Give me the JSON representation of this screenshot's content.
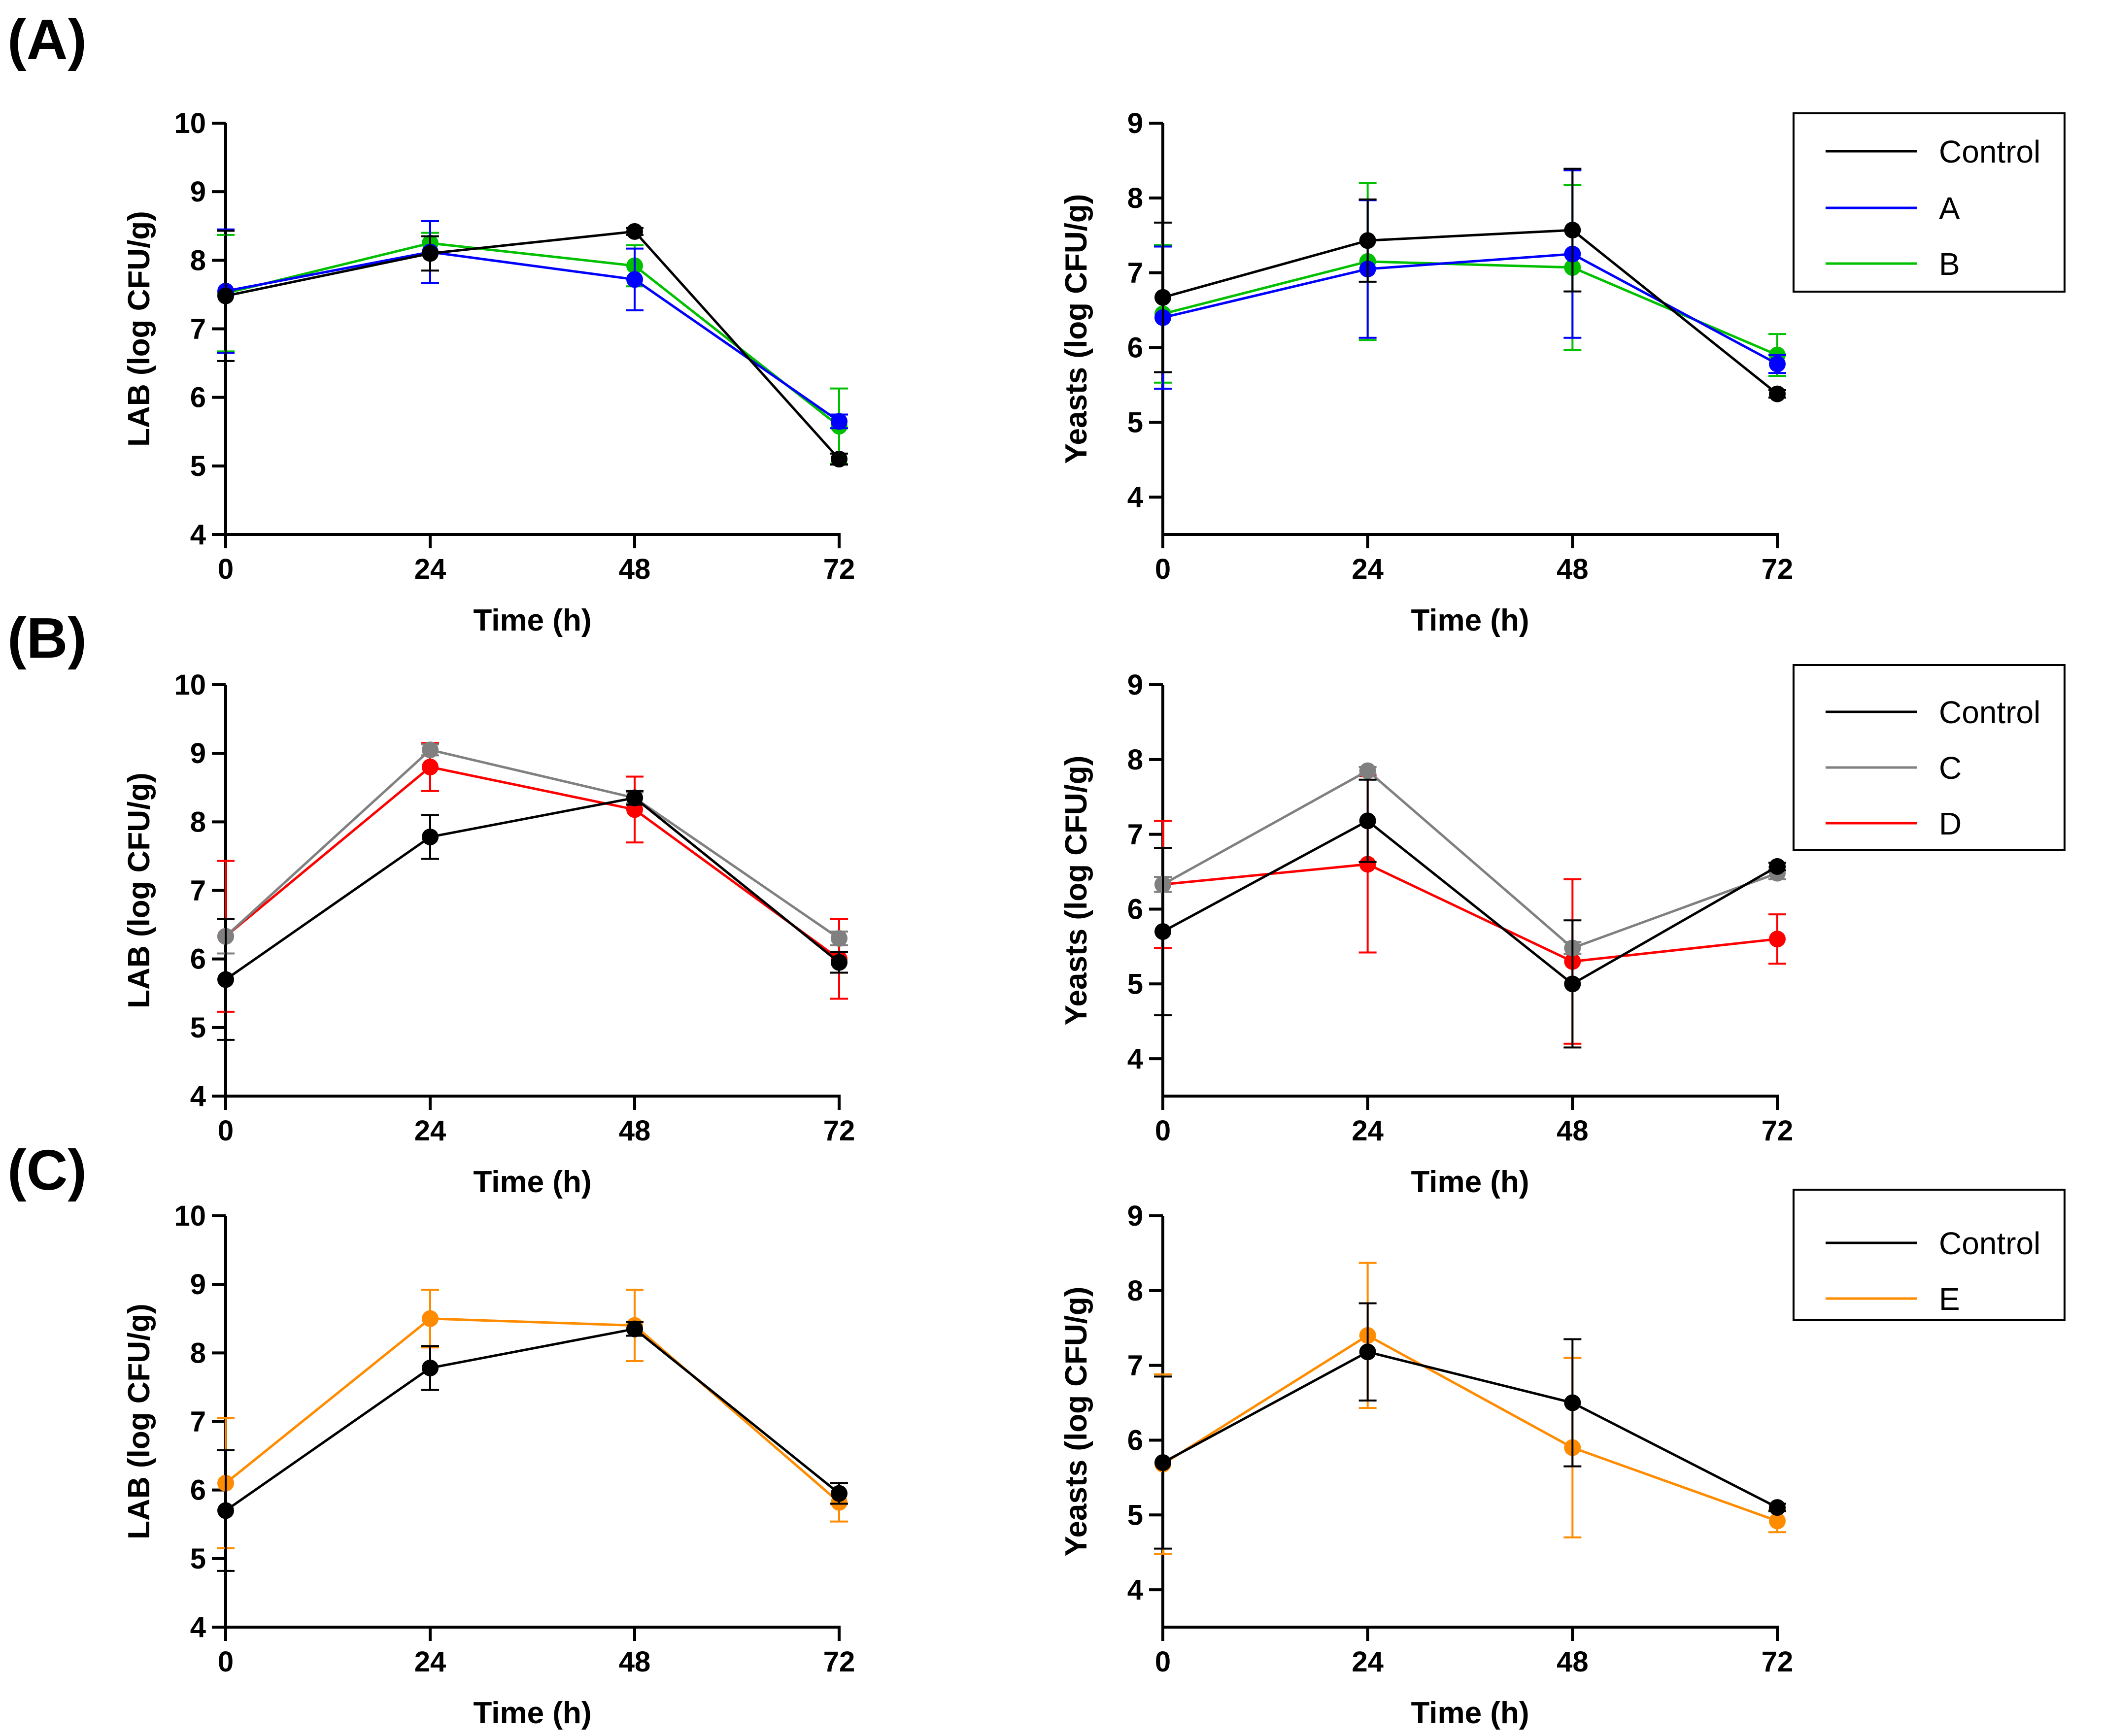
{
  "panels": [
    {
      "label": "(A)",
      "charts": [
        {
          "type": "line",
          "title": "",
          "xlabel": "Time (h)",
          "ylabel": "LAB (log CFU/g)",
          "x": [
            0,
            24,
            48,
            72
          ],
          "xticks": [
            "0",
            "24",
            "48",
            "72"
          ],
          "xlim": [
            0,
            72
          ],
          "ylim": [
            4,
            10
          ],
          "yticks": [
            "4",
            "5",
            "6",
            "7",
            "8",
            "9",
            "10"
          ],
          "series": [
            {
              "name": "Control",
              "color": "#000000",
              "values": [
                7.48,
                8.1,
                8.42,
                5.1
              ],
              "errors": [
                0.95,
                0.25,
                0.05,
                0.08
              ]
            },
            {
              "name": "A",
              "color": "#0000ff",
              "values": [
                7.55,
                8.12,
                7.72,
                5.65
              ],
              "errors": [
                0.9,
                0.45,
                0.45,
                0.1
              ]
            },
            {
              "name": "B",
              "color": "#00c000",
              "values": [
                7.52,
                8.25,
                7.92,
                5.58
              ],
              "errors": [
                0.85,
                0.15,
                0.3,
                0.55
              ]
            }
          ]
        },
        {
          "type": "line",
          "title": "",
          "xlabel": "Time (h)",
          "ylabel": "Yeasts (log CFU/g)",
          "x": [
            0,
            24,
            48,
            72
          ],
          "xticks": [
            "0",
            "24",
            "48",
            "72"
          ],
          "xlim": [
            0,
            72
          ],
          "ylim": [
            3.5,
            9
          ],
          "yticks": [
            "4",
            "5",
            "6",
            "7",
            "8",
            "9"
          ],
          "series": [
            {
              "name": "Control",
              "color": "#000000",
              "values": [
                6.67,
                7.43,
                7.57,
                5.38
              ],
              "errors": [
                1.0,
                0.55,
                0.82,
                0.05
              ]
            },
            {
              "name": "A",
              "color": "#0000ff",
              "values": [
                6.4,
                7.05,
                7.25,
                5.78
              ],
              "errors": [
                0.95,
                0.92,
                1.12,
                0.12
              ]
            },
            {
              "name": "B",
              "color": "#00c000",
              "values": [
                6.45,
                7.15,
                7.07,
                5.9
              ],
              "errors": [
                0.92,
                1.05,
                1.1,
                0.28
              ]
            }
          ]
        }
      ],
      "legend": [
        "Control",
        "A",
        "B"
      ]
    },
    {
      "label": "(B)",
      "charts": [
        {
          "type": "line",
          "title": "",
          "xlabel": "Time (h)",
          "ylabel": "LAB (log CFU/g)",
          "x": [
            0,
            24,
            48,
            72
          ],
          "xticks": [
            "0",
            "24",
            "48",
            "72"
          ],
          "xlim": [
            0,
            72
          ],
          "ylim": [
            4,
            10
          ],
          "yticks": [
            "4",
            "5",
            "6",
            "7",
            "8",
            "9",
            "10"
          ],
          "series": [
            {
              "name": "Control",
              "color": "#000000",
              "values": [
                5.7,
                7.78,
                8.35,
                5.95
              ],
              "errors": [
                0.88,
                0.32,
                0.1,
                0.15
              ]
            },
            {
              "name": "C",
              "color": "#808080",
              "values": [
                6.33,
                9.05,
                8.35,
                6.3
              ],
              "errors": [
                0.25,
                0.08,
                0.08,
                0.1
              ]
            },
            {
              "name": "D",
              "color": "#ff0000",
              "values": [
                6.33,
                8.8,
                8.18,
                6.0
              ],
              "errors": [
                1.1,
                0.35,
                0.48,
                0.58
              ]
            }
          ]
        },
        {
          "type": "line",
          "title": "",
          "xlabel": "Time (h)",
          "ylabel": "Yeasts (log CFU/g)",
          "x": [
            0,
            24,
            48,
            72
          ],
          "xticks": [
            "0",
            "24",
            "48",
            "72"
          ],
          "xlim": [
            0,
            72
          ],
          "ylim": [
            3.5,
            9
          ],
          "yticks": [
            "4",
            "5",
            "6",
            "7",
            "8",
            "9"
          ],
          "series": [
            {
              "name": "Control",
              "color": "#000000",
              "values": [
                5.7,
                7.18,
                5.0,
                6.57
              ],
              "errors": [
                1.12,
                0.55,
                0.85,
                0.05
              ]
            },
            {
              "name": "C",
              "color": "#808080",
              "values": [
                6.33,
                7.85,
                5.48,
                6.48
              ],
              "errors": [
                0.1,
                0.05,
                0.08,
                0.08
              ]
            },
            {
              "name": "D",
              "color": "#ff0000",
              "values": [
                6.33,
                6.6,
                5.3,
                5.6
              ],
              "errors": [
                0.85,
                1.18,
                1.1,
                0.33
              ]
            }
          ]
        }
      ],
      "legend": [
        "Control",
        "C",
        "D"
      ]
    },
    {
      "label": "(C)",
      "charts": [
        {
          "type": "line",
          "title": "",
          "xlabel": "Time (h)",
          "ylabel": "LAB (log CFU/g)",
          "x": [
            0,
            24,
            48,
            72
          ],
          "xticks": [
            "0",
            "24",
            "48",
            "72"
          ],
          "xlim": [
            0,
            72
          ],
          "ylim": [
            4,
            10
          ],
          "yticks": [
            "4",
            "5",
            "6",
            "7",
            "8",
            "9",
            "10"
          ],
          "series": [
            {
              "name": "Control",
              "color": "#000000",
              "values": [
                5.7,
                7.78,
                8.35,
                5.95
              ],
              "errors": [
                0.88,
                0.32,
                0.1,
                0.15
              ]
            },
            {
              "name": "E",
              "color": "#ff8c00",
              "values": [
                6.1,
                8.5,
                8.4,
                5.82
              ],
              "errors": [
                0.95,
                0.42,
                0.52,
                0.28
              ]
            }
          ]
        },
        {
          "type": "line",
          "title": "",
          "xlabel": "Time (h)",
          "ylabel": "Yeasts (log CFU/g)",
          "x": [
            0,
            24,
            48,
            72
          ],
          "xticks": [
            "0",
            "24",
            "48",
            "72"
          ],
          "xlim": [
            0,
            72
          ],
          "ylim": [
            3.5,
            9
          ],
          "yticks": [
            "4",
            "5",
            "6",
            "7",
            "8",
            "9"
          ],
          "series": [
            {
              "name": "Control",
              "color": "#000000",
              "values": [
                5.7,
                7.18,
                6.5,
                5.1
              ],
              "errors": [
                1.15,
                0.65,
                0.85,
                0.05
              ]
            },
            {
              "name": "E",
              "color": "#ff8c00",
              "values": [
                5.68,
                7.4,
                5.9,
                4.92
              ],
              "errors": [
                1.2,
                0.97,
                1.2,
                0.15
              ]
            }
          ]
        }
      ],
      "legend": [
        "Control",
        "E"
      ]
    }
  ]
}
